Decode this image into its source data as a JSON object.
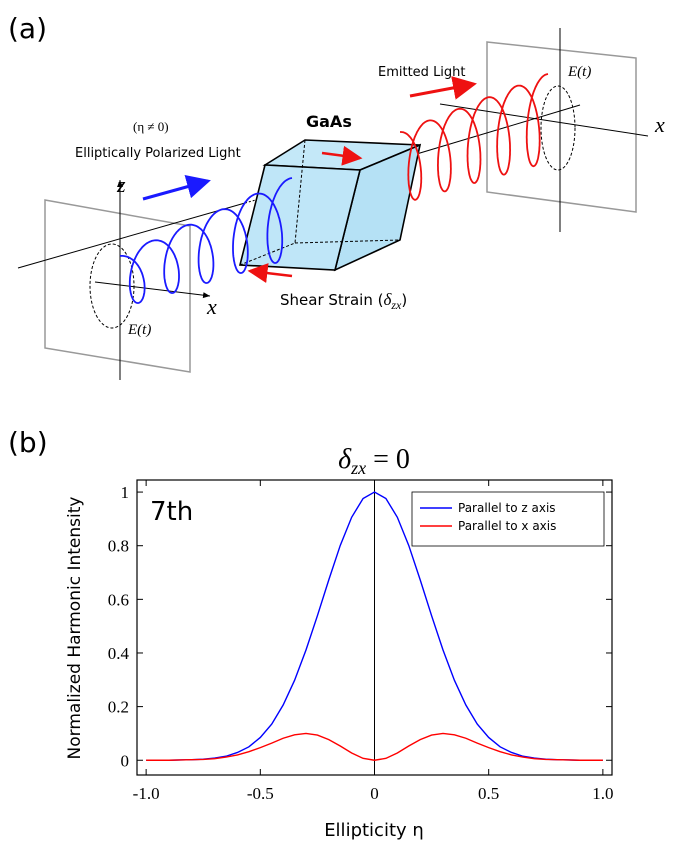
{
  "panel_a": {
    "label": "(a)",
    "material": "GaAs",
    "emitted": "Emitted Light",
    "eta_condition": "(η ≠ 0)",
    "incident": "Elliptically Polarized Light",
    "strain": {
      "text": "Shear Strain (",
      "symbol": "δ",
      "subscript": "zx",
      "close": ")"
    },
    "axis_z": "z",
    "axis_x_left": "x",
    "axis_x_right": "x",
    "field_left": "E(t)",
    "field_right": "E(t)"
  },
  "panel_b": {
    "label": "(b)",
    "annotation": "7th"
  },
  "chart_data": {
    "type": "line",
    "title": {
      "symbol": "δ",
      "subscript": "zx",
      "rest": " = 0"
    },
    "x_label": "Ellipticity η",
    "y_label": "Normalized Harmonic Intensity",
    "x": [
      -1,
      -0.95,
      -0.9,
      -0.85,
      -0.8,
      -0.75,
      -0.7,
      -0.65,
      -0.6,
      -0.55,
      -0.5,
      -0.45,
      -0.4,
      -0.35,
      -0.3,
      -0.25,
      -0.2,
      -0.15,
      -0.1,
      -0.05,
      0,
      0.05,
      0.1,
      0.15,
      0.2,
      0.25,
      0.3,
      0.35,
      0.4,
      0.45,
      0.5,
      0.55,
      0.6,
      0.65,
      0.7,
      0.75,
      0.8,
      0.85,
      0.9,
      0.95,
      1
    ],
    "series": [
      {
        "name": "Parallel to z axis",
        "color": "#0000ff",
        "values": [
          0,
          0,
          0,
          0.001,
          0.002,
          0.004,
          0.008,
          0.015,
          0.029,
          0.05,
          0.085,
          0.135,
          0.206,
          0.298,
          0.411,
          0.539,
          0.673,
          0.801,
          0.906,
          0.976,
          1,
          0.976,
          0.906,
          0.801,
          0.673,
          0.539,
          0.411,
          0.298,
          0.206,
          0.135,
          0.085,
          0.05,
          0.029,
          0.015,
          0.008,
          0.004,
          0.002,
          0.001,
          0,
          0,
          0
        ]
      },
      {
        "name": "Parallel to x axis",
        "color": "#ff0000",
        "values": [
          0,
          0,
          0,
          0.001,
          0.002,
          0.003,
          0.006,
          0.012,
          0.02,
          0.032,
          0.047,
          0.064,
          0.082,
          0.095,
          0.1,
          0.094,
          0.077,
          0.053,
          0.027,
          0.007,
          0,
          0.007,
          0.027,
          0.053,
          0.077,
          0.094,
          0.1,
          0.095,
          0.082,
          0.064,
          0.047,
          0.032,
          0.02,
          0.012,
          0.006,
          0.003,
          0.002,
          0.001,
          0,
          0,
          0
        ]
      }
    ],
    "xlim": [
      -1.04,
      1.04
    ],
    "ylim": [
      -0.055,
      1.045
    ],
    "xticks": [
      {
        "value": -1,
        "label": "-1.0"
      },
      -0.5,
      0,
      0.5,
      {
        "value": 1,
        "label": "1.0"
      }
    ],
    "yticks": [
      0,
      0.2,
      0.4,
      0.6,
      0.8,
      1
    ],
    "grid": false,
    "legend": "upper right"
  }
}
